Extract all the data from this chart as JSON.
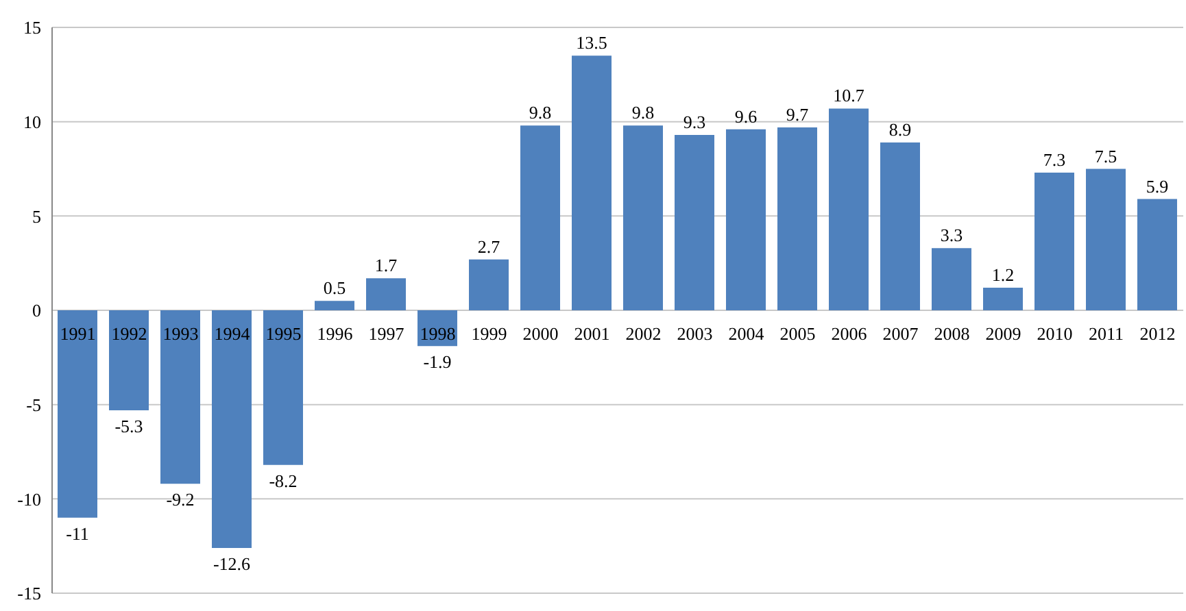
{
  "chart_data": {
    "type": "bar",
    "categories": [
      "1991",
      "1992",
      "1993",
      "1994",
      "1995",
      "1996",
      "1997",
      "1998",
      "1999",
      "2000",
      "2001",
      "2002",
      "2003",
      "2004",
      "2005",
      "2006",
      "2007",
      "2008",
      "2009",
      "2010",
      "2011",
      "2012"
    ],
    "values": [
      -11,
      -5.3,
      -9.2,
      -12.6,
      -8.2,
      0.5,
      1.7,
      -1.9,
      2.7,
      9.8,
      13.5,
      9.8,
      9.3,
      9.6,
      9.7,
      10.7,
      8.9,
      3.3,
      1.2,
      7.3,
      7.5,
      5.9
    ],
    "color": "#4f81bd",
    "ylim": [
      -15,
      15
    ],
    "yticks": [
      -15,
      -10,
      -5,
      0,
      5,
      10,
      15
    ],
    "grid": "y",
    "data_labels": true
  }
}
